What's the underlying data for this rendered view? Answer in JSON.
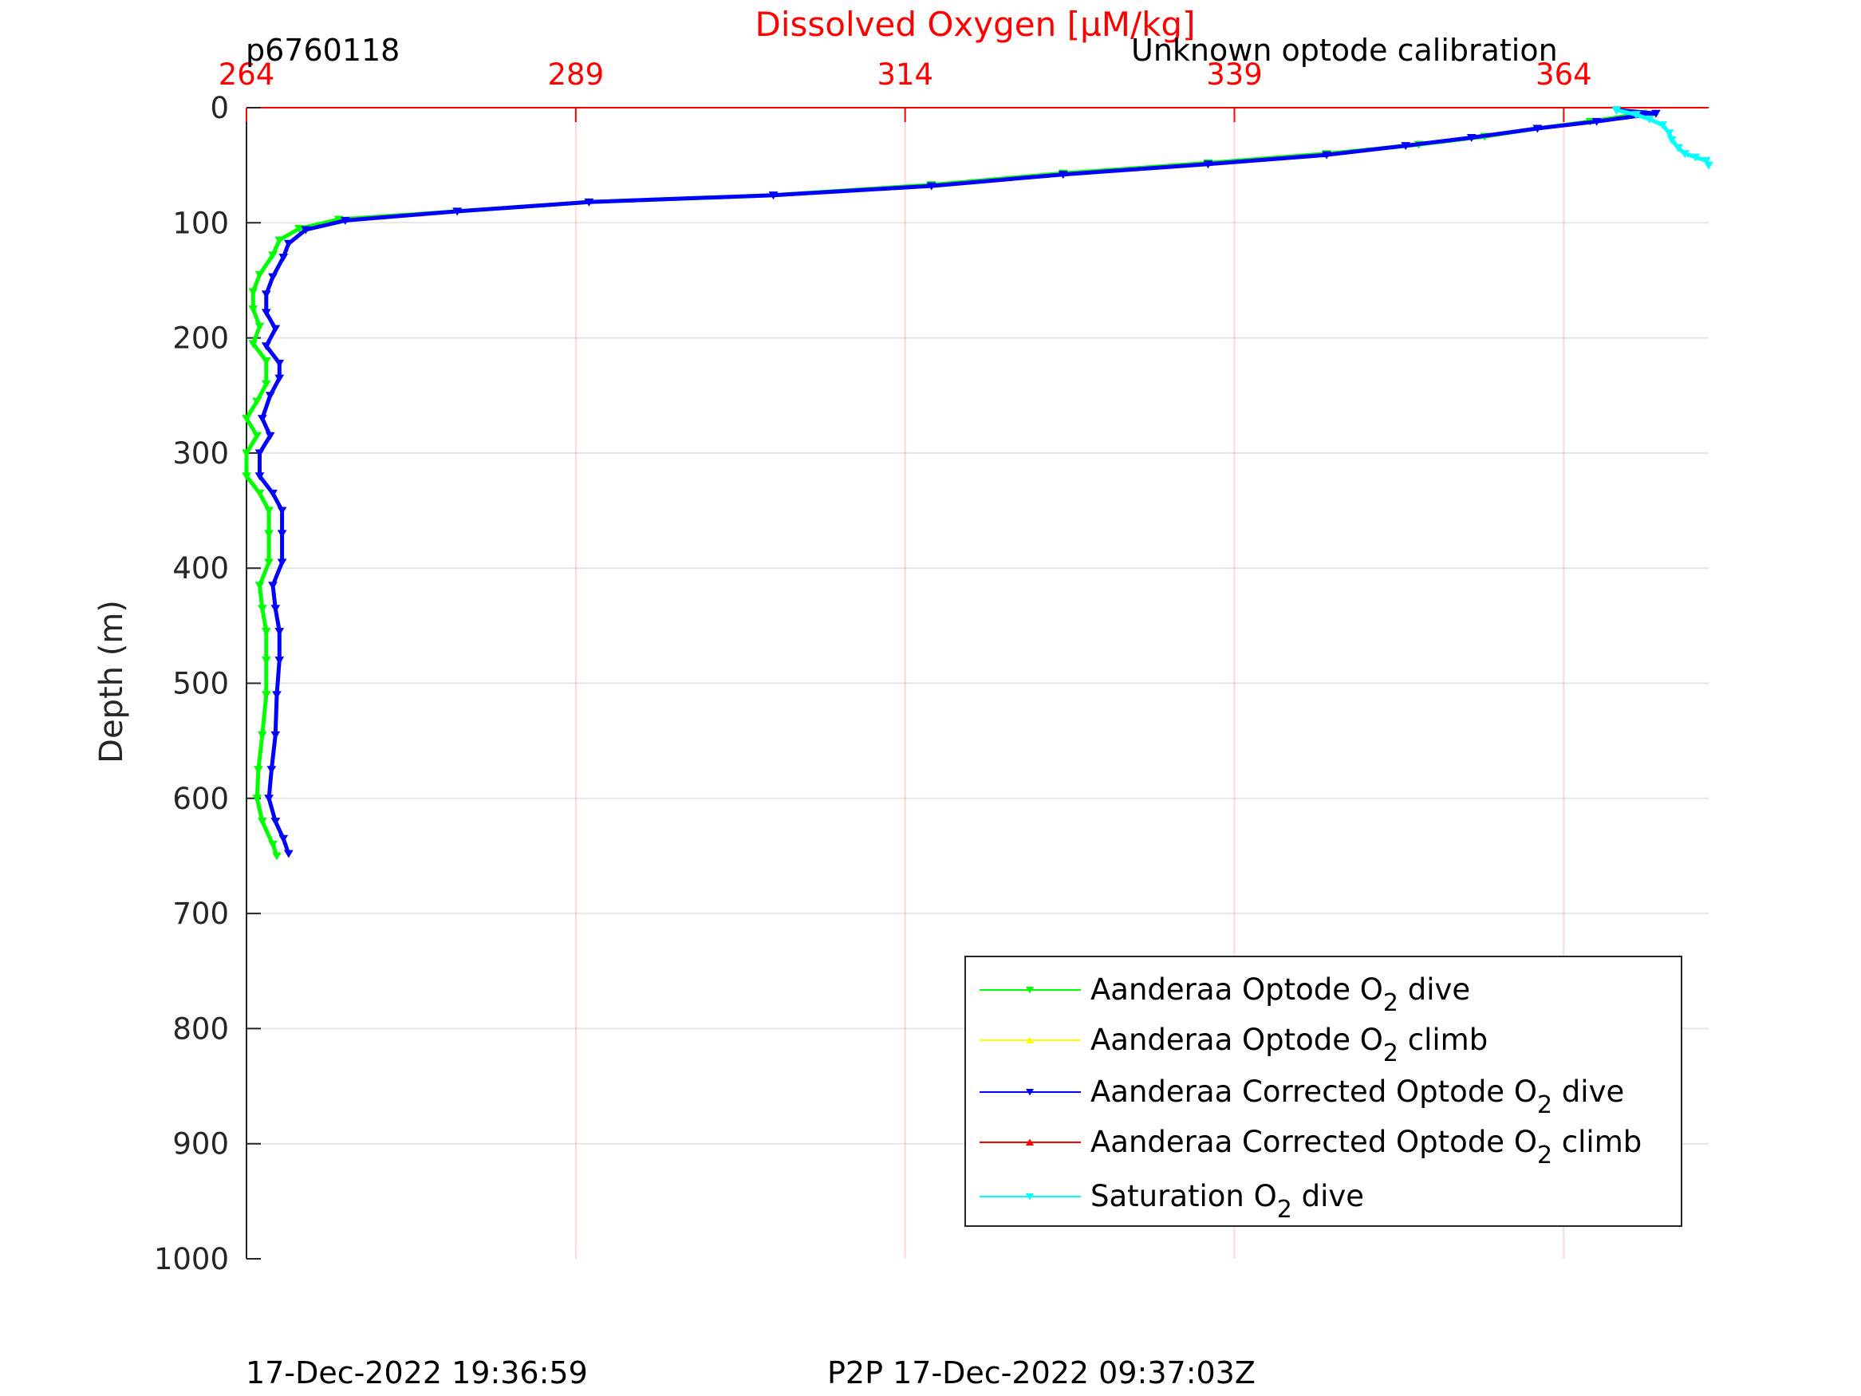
{
  "chart_data": {
    "type": "line",
    "title": "Dissolved Oxygen [µM/kg]",
    "xlabel": "Dissolved Oxygen [µM/kg]",
    "ylabel": "Depth (m)",
    "xlim": [
      264,
      375
    ],
    "ylim": [
      0,
      1000
    ],
    "x_axis_position": "top",
    "y_reversed": true,
    "x_ticks": [
      264,
      289,
      314,
      339,
      364
    ],
    "y_ticks": [
      0,
      100,
      200,
      300,
      400,
      500,
      600,
      700,
      800,
      900,
      1000
    ],
    "grid": true,
    "legend_position": "bottom-right",
    "annotations": {
      "glider_id": "p6760118",
      "calibration_note": "Unknown optode calibration",
      "timestamp": "17-Dec-2022 19:36:59",
      "p2p": "P2P 17-Dec-2022 09:37:03Z"
    },
    "series": [
      {
        "name": "Aanderaa Optode O2 dive",
        "label_main": "Aanderaa Optode O",
        "label_sub": "2",
        "label_tail": " dive",
        "color": "#00ff00",
        "marker": "down",
        "points": [
          [
            368,
            2
          ],
          [
            370,
            5
          ],
          [
            366,
            12
          ],
          [
            362,
            18
          ],
          [
            358,
            25
          ],
          [
            353,
            32
          ],
          [
            346,
            40
          ],
          [
            337,
            48
          ],
          [
            326,
            57
          ],
          [
            316,
            67
          ],
          [
            304,
            76
          ],
          [
            290,
            82
          ],
          [
            280,
            90
          ],
          [
            271,
            97
          ],
          [
            268,
            105
          ],
          [
            266.5,
            115
          ],
          [
            266,
            128
          ],
          [
            265,
            145
          ],
          [
            264.5,
            160
          ],
          [
            264.5,
            175
          ],
          [
            265,
            190
          ],
          [
            264.5,
            205
          ],
          [
            265.5,
            220
          ],
          [
            265.5,
            240
          ],
          [
            264.8,
            255
          ],
          [
            264,
            270
          ],
          [
            264.8,
            285
          ],
          [
            264,
            300
          ],
          [
            264,
            320
          ],
          [
            265,
            335
          ],
          [
            265.7,
            350
          ],
          [
            265.7,
            370
          ],
          [
            265.7,
            395
          ],
          [
            265,
            415
          ],
          [
            265.2,
            435
          ],
          [
            265.5,
            455
          ],
          [
            265.5,
            480
          ],
          [
            265.5,
            510
          ],
          [
            265.2,
            545
          ],
          [
            264.9,
            575
          ],
          [
            264.8,
            600
          ],
          [
            265.2,
            620
          ],
          [
            266,
            640
          ],
          [
            266.3,
            650
          ]
        ]
      },
      {
        "name": "Aanderaa Optode O2 climb",
        "label_main": "Aanderaa Optode O",
        "label_sub": "2",
        "label_tail": " climb",
        "color": "#ffff00",
        "marker": "up",
        "points": []
      },
      {
        "name": "Aanderaa Corrected Optode O2 dive",
        "label_main": "Aanderaa Corrected Optode O",
        "label_sub": "2",
        "label_tail": " dive",
        "color": "#0000ff",
        "marker": "down",
        "points": [
          [
            368,
            2
          ],
          [
            371,
            5
          ],
          [
            366.5,
            12
          ],
          [
            362,
            18
          ],
          [
            357,
            26
          ],
          [
            352,
            33
          ],
          [
            346,
            41
          ],
          [
            337,
            49
          ],
          [
            326,
            58
          ],
          [
            316,
            68
          ],
          [
            304,
            76
          ],
          [
            290,
            82
          ],
          [
            280,
            90
          ],
          [
            271.5,
            98
          ],
          [
            268.5,
            106
          ],
          [
            267.2,
            118
          ],
          [
            266.8,
            130
          ],
          [
            266,
            147
          ],
          [
            265.5,
            162
          ],
          [
            265.5,
            178
          ],
          [
            266.2,
            192
          ],
          [
            265.5,
            207
          ],
          [
            266.5,
            222
          ],
          [
            266.5,
            235
          ],
          [
            265.8,
            250
          ],
          [
            265.2,
            270
          ],
          [
            265.8,
            285
          ],
          [
            265,
            300
          ],
          [
            265,
            320
          ],
          [
            266,
            335
          ],
          [
            266.7,
            350
          ],
          [
            266.7,
            370
          ],
          [
            266.7,
            395
          ],
          [
            266,
            415
          ],
          [
            266.2,
            435
          ],
          [
            266.5,
            455
          ],
          [
            266.5,
            480
          ],
          [
            266.3,
            510
          ],
          [
            266.2,
            545
          ],
          [
            265.9,
            575
          ],
          [
            265.7,
            600
          ],
          [
            266.2,
            620
          ],
          [
            266.8,
            635
          ],
          [
            267.2,
            648
          ]
        ]
      },
      {
        "name": "Aanderaa Corrected Optode O2 climb",
        "label_main": "Aanderaa Corrected Optode O",
        "label_sub": "2",
        "label_tail": " climb",
        "color": "#ff0000",
        "marker": "up",
        "points": []
      },
      {
        "name": "Saturation O2 dive",
        "label_main": "Saturation O",
        "label_sub": "2",
        "label_tail": " dive",
        "color": "#00ffff",
        "marker": "down",
        "points": [
          [
            368,
            2
          ],
          [
            369.5,
            6
          ],
          [
            370.5,
            10
          ],
          [
            371.5,
            15
          ],
          [
            372,
            22
          ],
          [
            372.2,
            28
          ],
          [
            372.7,
            35
          ],
          [
            373.2,
            40
          ],
          [
            374,
            43
          ],
          [
            374.8,
            46
          ],
          [
            375,
            50
          ]
        ]
      }
    ]
  }
}
